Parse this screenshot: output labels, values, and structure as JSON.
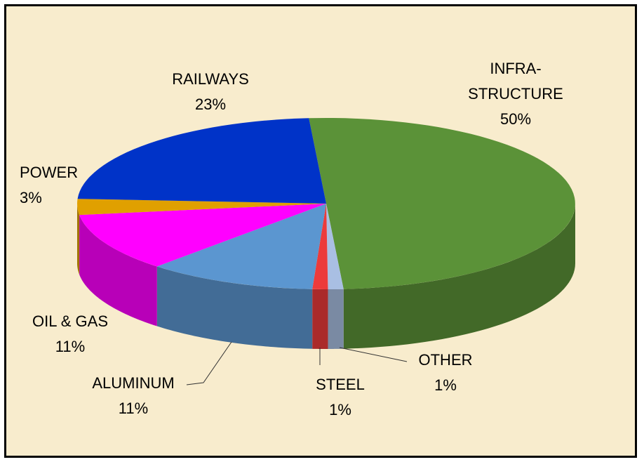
{
  "chart_data": {
    "type": "pie",
    "categories": [
      "INFRA-STRUCTURE",
      "OTHER",
      "STEEL",
      "ALUMINUM",
      "OIL & GAS",
      "POWER",
      "RAILWAYS"
    ],
    "values": [
      50,
      1,
      1,
      11,
      11,
      3,
      23
    ],
    "value_labels": [
      "50%",
      "1%",
      "1%",
      "11%",
      "11%",
      "3%",
      "23%"
    ],
    "colors": [
      "#5b9238",
      "#a9bfe3",
      "#ec3b3b",
      "#5b96d0",
      "#ff00ff",
      "#e0a000",
      "#0033c8"
    ]
  }
}
